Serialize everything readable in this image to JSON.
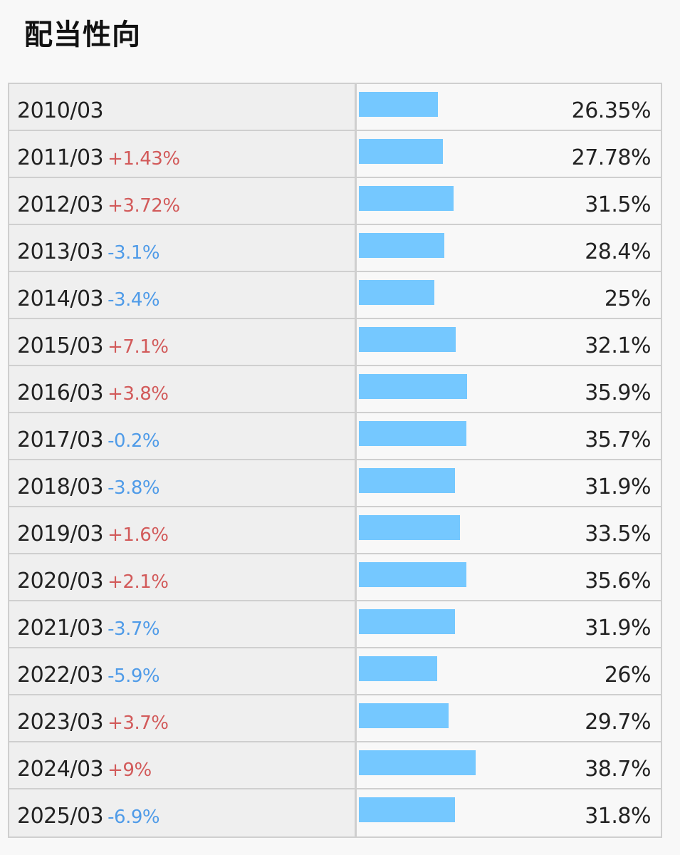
{
  "title": "配当性向",
  "chart_data": {
    "type": "bar",
    "orientation": "horizontal",
    "categories": [
      "2010/03",
      "2011/03",
      "2012/03",
      "2013/03",
      "2014/03",
      "2015/03",
      "2016/03",
      "2017/03",
      "2018/03",
      "2019/03",
      "2020/03",
      "2021/03",
      "2022/03",
      "2023/03",
      "2024/03",
      "2025/03"
    ],
    "values": [
      26.35,
      27.78,
      31.5,
      28.4,
      25,
      32.1,
      35.9,
      35.7,
      31.9,
      33.5,
      35.6,
      31.9,
      26,
      29.7,
      38.7,
      31.8
    ],
    "value_labels": [
      "26.35%",
      "27.78%",
      "31.5%",
      "28.4%",
      "25%",
      "32.1%",
      "35.9%",
      "35.7%",
      "31.9%",
      "33.5%",
      "35.6%",
      "31.9%",
      "26%",
      "29.7%",
      "38.7%",
      "31.8%"
    ],
    "changes": [
      "",
      "+1.43%",
      "+3.72%",
      "-3.1%",
      "-3.4%",
      "+7.1%",
      "+3.8%",
      "-0.2%",
      "-3.8%",
      "+1.6%",
      "+2.1%",
      "-3.7%",
      "-5.9%",
      "+3.7%",
      "+9%",
      "-6.9%"
    ],
    "bar_color": "#75c8ff",
    "up_color": "#d25a5a",
    "down_color": "#4f9be8"
  }
}
